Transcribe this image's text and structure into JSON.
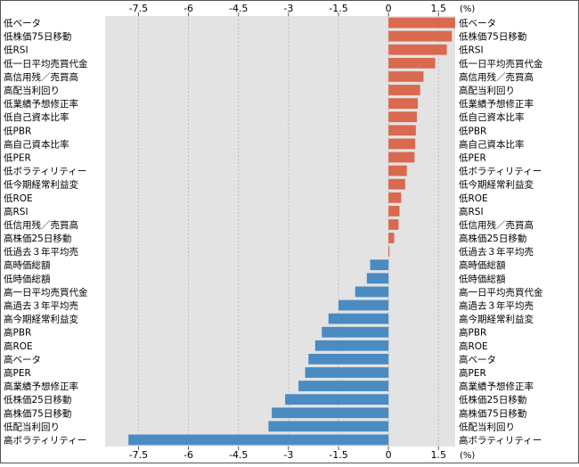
{
  "chart_data": {
    "type": "bar",
    "orientation": "horizontal",
    "unit_label": "(%)",
    "xlim": [
      -8.5,
      2.0
    ],
    "xticks": [
      -7.5,
      -6,
      -4.5,
      -3,
      -1.5,
      0,
      1.5
    ],
    "xtick_labels": [
      "-7.5",
      "-6",
      "-4.5",
      "-3",
      "-1.5",
      "0",
      "1.5"
    ],
    "grid": "vertical dashed",
    "colors": {
      "positive": "#d9694f",
      "negative": "#4a8bc2",
      "background": "#e3e3e3"
    },
    "left_labels": [
      "低ベータ",
      "低株価75日移動",
      "低RSI",
      "低一日平均売買代金",
      "高信用残／売買高",
      "高配当利回り",
      "低業績予想修正率",
      "低自己資本比率",
      "低PBR",
      "高自己資本比率",
      "低PER",
      "低ボラティリティー",
      "低今期経常利益変",
      "低ROE",
      "高RSI",
      "低信用残／売買高",
      "高株価25日移動",
      "低過去３年平均売",
      "高時価総額",
      "低時価総額",
      "高一日平均売買代金",
      "高過去３年平均売",
      "高今期経常利益変",
      "高PBR",
      "高ROE",
      "高ベータ",
      "高PER",
      "高業績予想修正率",
      "低株価25日移動",
      "高株価75日移動",
      "低配当利回り",
      "高ボラティリティー"
    ],
    "right_labels": [
      "低ベータ",
      "低株価75日移動",
      "低RSI",
      "低一日平均売買代金",
      "高信用残／売買高",
      "高配当利回り",
      "低業績予想修正率",
      "低自己資本比率",
      "低PBR",
      "高自己資本比率",
      "低PER",
      "低ボラティリティー",
      "低今期経常利益変",
      "低ROE",
      "高RSI",
      "低信用残／売買高",
      "高株価25日移動",
      "低過去３年平均売",
      "高時価総額",
      "低時価総額",
      "高一日平均売買代金",
      "高過去３年平均売",
      "高今期経常利益変",
      "高PBR",
      "高ROE",
      "高ベータ",
      "高PER",
      "高業績予想修正率",
      "低株価25日移動",
      "高株価75日移動",
      "低配当利回り",
      "高ボラティリティー"
    ],
    "values": [
      2.0,
      1.9,
      1.75,
      1.4,
      1.05,
      0.95,
      0.88,
      0.85,
      0.82,
      0.8,
      0.78,
      0.55,
      0.5,
      0.38,
      0.33,
      0.3,
      0.17,
      0.03,
      -0.55,
      -0.65,
      -1.0,
      -1.5,
      -1.8,
      -2.0,
      -2.2,
      -2.4,
      -2.5,
      -2.7,
      -3.1,
      -3.5,
      -3.6,
      -7.8
    ]
  }
}
